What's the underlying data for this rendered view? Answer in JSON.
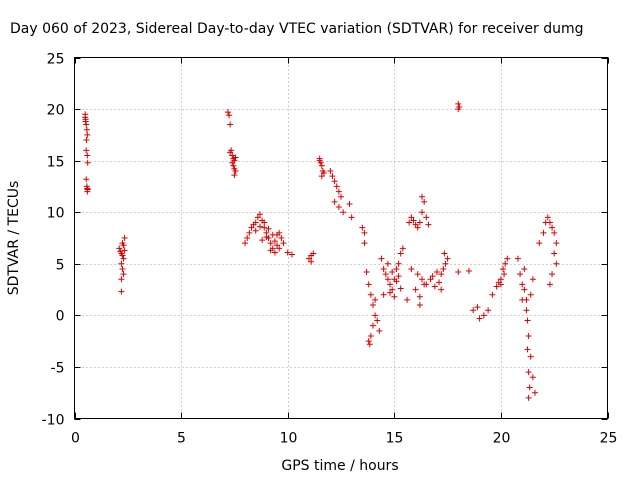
{
  "chart_data": {
    "type": "scatter",
    "title": "Day 060 of 2023, Sidereal Day-to-day VTEC variation (SDTVAR) for receiver dumg",
    "xlabel": "GPS time / hours",
    "ylabel": "SDTVAR / TECUs",
    "xlim": [
      0,
      25
    ],
    "ylim": [
      -10,
      25
    ],
    "xticks": [
      "0",
      "5",
      "10",
      "15",
      "20",
      "25"
    ],
    "yticks": [
      "-10",
      "-5",
      "0",
      "5",
      "10",
      "15",
      "20",
      "25"
    ],
    "grid": true,
    "marker": "plus",
    "color": "#e00000",
    "series": [
      {
        "name": "SDTVAR",
        "x": [
          0.5,
          0.52,
          0.55,
          0.58,
          0.6,
          0.5,
          0.55,
          0.6,
          0.62,
          0.55,
          0.58,
          0.6,
          0.52,
          0.56,
          0.6,
          0.62,
          2.1,
          2.15,
          2.2,
          2.25,
          2.3,
          2.35,
          2.2,
          2.25,
          2.3,
          2.2,
          2.25,
          2.3,
          2.2,
          2.35,
          7.2,
          7.25,
          7.3,
          7.35,
          7.3,
          7.4,
          7.45,
          7.5,
          7.4,
          7.45,
          7.5,
          7.55,
          7.5,
          7.55,
          8.0,
          8.1,
          8.2,
          8.3,
          8.4,
          8.5,
          8.6,
          8.7,
          8.8,
          8.9,
          9.0,
          9.1,
          9.2,
          9.3,
          9.4,
          9.5,
          9.6,
          9.7,
          9.8,
          8.5,
          8.7,
          8.9,
          9.1,
          9.3,
          9.5,
          9.2,
          9.4,
          9.6,
          9.0,
          8.8,
          10.0,
          10.2,
          11.0,
          11.1,
          11.2,
          11.1,
          11.5,
          11.55,
          11.6,
          11.65,
          11.7,
          11.6,
          11.5,
          12.0,
          12.1,
          12.2,
          12.3,
          12.4,
          12.5,
          12.2,
          12.4,
          12.6,
          12.9,
          13.0,
          13.5,
          13.6,
          13.6,
          13.7,
          13.8,
          13.9,
          14.0,
          14.1,
          14.2,
          14.0,
          13.9,
          13.8,
          13.85,
          14.1,
          14.3,
          14.4,
          14.5,
          14.6,
          14.7,
          14.8,
          14.9,
          15.0,
          15.1,
          15.2,
          15.3,
          15.4,
          14.5,
          14.7,
          14.9,
          15.1,
          15.3,
          15.0,
          14.8,
          15.2,
          15.6,
          15.7,
          15.8,
          15.9,
          16.0,
          16.1,
          16.2,
          16.3,
          16.4,
          16.5,
          16.6,
          16.2,
          16.0,
          16.3,
          15.8,
          16.1,
          16.4,
          16.2,
          16.3,
          16.5,
          16.7,
          16.9,
          17.1,
          17.2,
          17.3,
          17.4,
          17.5,
          17.2,
          17.35,
          16.8,
          17.0,
          18.0,
          18.05,
          18.0,
          18.0,
          18.5,
          18.7,
          18.9,
          19.0,
          19.2,
          19.4,
          19.6,
          19.8,
          20.0,
          20.1,
          20.2,
          20.3,
          20.0,
          20.15,
          19.9,
          20.8,
          20.9,
          21.0,
          21.1,
          21.2,
          21.3,
          21.4,
          21.5,
          21.6,
          21.2,
          21.25,
          21.3,
          21.35,
          21.3,
          21.25,
          21.4,
          21.5,
          21.1,
          21.0,
          21.8,
          22.0,
          22.1,
          22.2,
          22.3,
          22.4,
          22.5,
          22.6,
          22.5,
          22.6,
          22.4,
          22.3
        ],
        "y": [
          19.5,
          19.0,
          18.5,
          18.0,
          17.5,
          19.2,
          16.0,
          15.5,
          14.8,
          13.2,
          12.5,
          12.3,
          18.8,
          17.0,
          12.0,
          12.2,
          6.5,
          6.2,
          6.0,
          5.8,
          5.5,
          7.5,
          5.0,
          4.5,
          4.0,
          3.5,
          7.0,
          6.8,
          2.3,
          6.3,
          19.7,
          19.4,
          18.5,
          16.0,
          15.8,
          15.5,
          15.2,
          15.0,
          14.8,
          14.5,
          14.2,
          14.0,
          13.6,
          15.3,
          7.0,
          7.5,
          8.0,
          8.5,
          8.8,
          9.0,
          9.5,
          9.8,
          9.2,
          8.5,
          8.0,
          7.5,
          7.0,
          6.5,
          7.2,
          7.8,
          8.0,
          7.5,
          7.0,
          8.2,
          8.6,
          9.0,
          8.4,
          7.8,
          6.8,
          6.3,
          6.1,
          6.5,
          7.6,
          7.3,
          6.1,
          5.9,
          5.5,
          5.8,
          6.0,
          5.2,
          15.0,
          14.8,
          14.5,
          14.0,
          13.8,
          13.5,
          15.2,
          14.0,
          13.5,
          13.0,
          12.5,
          12.0,
          11.5,
          11.0,
          10.5,
          10.0,
          10.8,
          9.5,
          8.5,
          8.0,
          7.0,
          4.2,
          3.0,
          2.0,
          1.0,
          0.0,
          -0.5,
          -1.0,
          -2.0,
          -2.5,
          -2.8,
          1.5,
          -1.5,
          5.5,
          4.5,
          4.0,
          3.5,
          3.0,
          2.5,
          3.5,
          4.5,
          5.0,
          6.0,
          6.5,
          2.0,
          5.0,
          4.2,
          3.3,
          2.6,
          1.8,
          2.2,
          3.8,
          1.5,
          9.0,
          9.5,
          9.2,
          8.8,
          8.5,
          9.0,
          10.0,
          11.0,
          9.5,
          8.8,
          1.0,
          2.5,
          3.5,
          4.5,
          4.0,
          3.0,
          1.8,
          11.5,
          3.0,
          3.5,
          2.8,
          3.2,
          4.0,
          4.5,
          5.0,
          5.5,
          2.5,
          6.0,
          3.8,
          4.2,
          20.5,
          20.2,
          20.0,
          4.2,
          4.3,
          0.5,
          0.8,
          -0.3,
          0.0,
          0.5,
          2.0,
          2.8,
          3.5,
          4.5,
          5.0,
          5.5,
          3.0,
          4.0,
          3.2,
          5.5,
          4.0,
          3.0,
          2.5,
          1.5,
          -2.0,
          -4.0,
          -6.0,
          -7.5,
          0.5,
          -3.3,
          -5.5,
          -7.0,
          -8.0,
          -0.5,
          2.0,
          3.5,
          4.5,
          1.5,
          7.0,
          8.0,
          9.0,
          9.5,
          9.0,
          8.5,
          8.0,
          7.0,
          6.0,
          5.0,
          4.0,
          3.0
        ]
      }
    ]
  }
}
